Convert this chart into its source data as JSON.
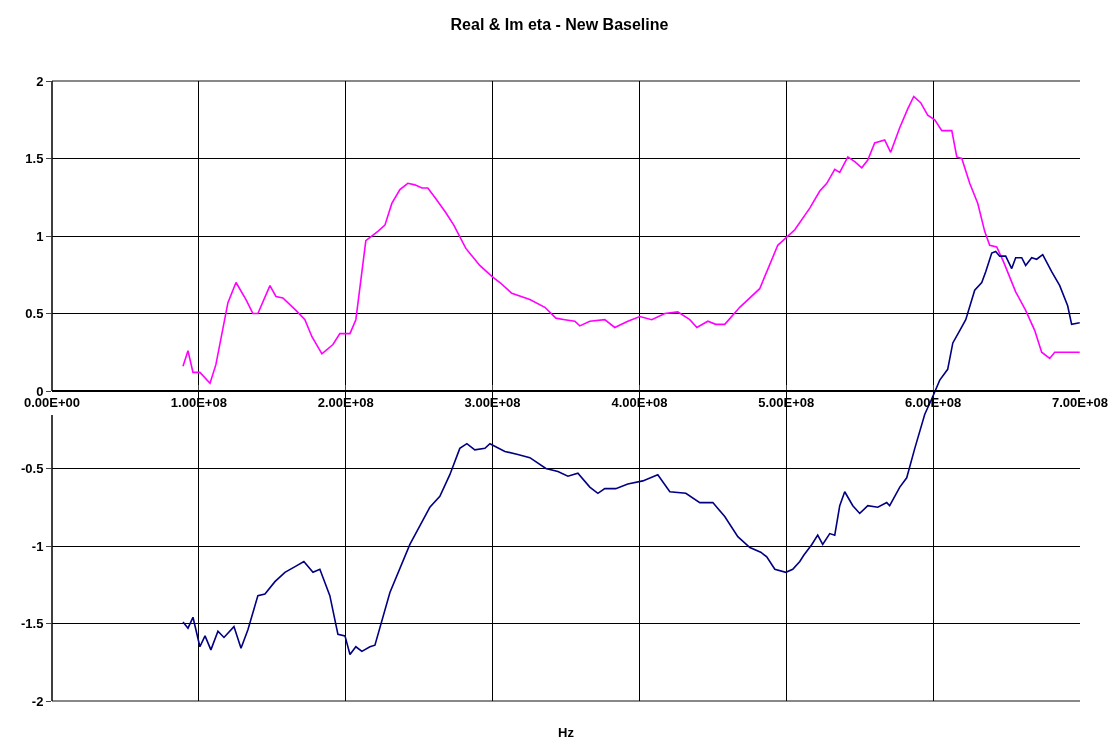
{
  "chart_data": {
    "type": "line",
    "title": "Real & Im eta - New Baseline",
    "xlabel": "Hz",
    "xlim": [
      0,
      700000000
    ],
    "ylim": [
      -2,
      2
    ],
    "xticks": [
      {
        "value": 0,
        "label": "0.00E+00"
      },
      {
        "value": 100000000,
        "label": "1.00E+08"
      },
      {
        "value": 200000000,
        "label": "2.00E+08"
      },
      {
        "value": 300000000,
        "label": "3.00E+08"
      },
      {
        "value": 400000000,
        "label": "4.00E+08"
      },
      {
        "value": 500000000,
        "label": "5.00E+08"
      },
      {
        "value": 600000000,
        "label": "6.00E+08"
      },
      {
        "value": 700000000,
        "label": "7.00E+08"
      }
    ],
    "yticks": [
      -2,
      -1.5,
      -1,
      -0.5,
      0,
      0.5,
      1,
      1.5,
      2
    ],
    "grid": true,
    "marker": "none",
    "line_style": "solid",
    "series": [
      {
        "color": "#ff00ff",
        "x": [
          89200000,
          92600000,
          96000000,
          100700000,
          107600000,
          111600000,
          119800000,
          125300000,
          132100000,
          136800000,
          140200000,
          148400000,
          152500000,
          157200000,
          166100000,
          172200000,
          177000000,
          183800000,
          191300000,
          196000000,
          202900000,
          206900000,
          213700000,
          221900000,
          226700000,
          231400000,
          236900000,
          242300000,
          247100000,
          251900000,
          255900000,
          261400000,
          268200000,
          273600000,
          281800000,
          291300000,
          299500000,
          305000000,
          313100000,
          325400000,
          335600000,
          343100000,
          349200000,
          356000000,
          359400000,
          366200000,
          376400000,
          383200000,
          392100000,
          400300000,
          408400000,
          417300000,
          426100000,
          434300000,
          439100000,
          446600000,
          452000000,
          458100000,
          468300000,
          481900000,
          494200000,
          505800000,
          516000000,
          522800000,
          527600000,
          533000000,
          536400000,
          541900000,
          546600000,
          551400000,
          555500000,
          560200000,
          567000000,
          571100000,
          577300000,
          582700000,
          586800000,
          591500000,
          596300000,
          601100000,
          605900000,
          612700000,
          616100000,
          619500000,
          624900000,
          630400000,
          635100000,
          638500000,
          643300000,
          648100000,
          656200000,
          663000000,
          669200000,
          673900000,
          679400000,
          682800000,
          699800000
        ],
        "values": [
          0.16,
          0.26,
          0.12,
          0.12,
          0.05,
          0.17,
          0.57,
          0.7,
          0.59,
          0.5,
          0.5,
          0.68,
          0.61,
          0.6,
          0.52,
          0.46,
          0.35,
          0.24,
          0.3,
          0.37,
          0.37,
          0.46,
          0.97,
          1.03,
          1.07,
          1.21,
          1.3,
          1.34,
          1.33,
          1.31,
          1.31,
          1.24,
          1.15,
          1.07,
          0.92,
          0.81,
          0.74,
          0.7,
          0.63,
          0.59,
          0.54,
          0.47,
          0.46,
          0.45,
          0.42,
          0.45,
          0.46,
          0.41,
          0.45,
          0.48,
          0.46,
          0.5,
          0.51,
          0.46,
          0.41,
          0.45,
          0.43,
          0.43,
          0.54,
          0.66,
          0.94,
          1.04,
          1.18,
          1.29,
          1.34,
          1.43,
          1.41,
          1.51,
          1.48,
          1.44,
          1.49,
          1.6,
          1.62,
          1.54,
          1.7,
          1.82,
          1.9,
          1.86,
          1.78,
          1.75,
          1.68,
          1.68,
          1.51,
          1.5,
          1.34,
          1.21,
          1.03,
          0.94,
          0.93,
          0.83,
          0.64,
          0.52,
          0.39,
          0.25,
          0.21,
          0.25,
          0.25
        ]
      },
      {
        "color": "#000080",
        "x": [
          89200000,
          92600000,
          96000000,
          100700000,
          104200000,
          108200000,
          113000000,
          117100000,
          123900000,
          128700000,
          133400000,
          140200000,
          145000000,
          151800000,
          158600000,
          166100000,
          171500000,
          177700000,
          182400000,
          189200000,
          194700000,
          199500000,
          202900000,
          206900000,
          211000000,
          216500000,
          219900000,
          230100000,
          243700000,
          257300000,
          264100000,
          270900000,
          277700000,
          282500000,
          287900000,
          294800000,
          298200000,
          308400000,
          317200000,
          325400000,
          336300000,
          344500000,
          351300000,
          358100000,
          366200000,
          371700000,
          376400000,
          383900000,
          392100000,
          402300000,
          412500000,
          420700000,
          431600000,
          441100000,
          450000000,
          458100000,
          467000000,
          475200000,
          482600000,
          486700000,
          492200000,
          499700000,
          504400000,
          509200000,
          511900000,
          517400000,
          521400000,
          524800000,
          529600000,
          533000000,
          536400000,
          539800000,
          545300000,
          550000000,
          555500000,
          562300000,
          568400000,
          570400000,
          577300000,
          582000000,
          587500000,
          594300000,
          599100000,
          604500000,
          609900000,
          613400000,
          618100000,
          622200000,
          628300000,
          633100000,
          635800000,
          639900000,
          642600000,
          645300000,
          649400000,
          653500000,
          656200000,
          660300000,
          663000000,
          667100000,
          670500000,
          674600000,
          680700000,
          686200000,
          691600000,
          694300000,
          699800000
        ],
        "values": [
          -1.49,
          -1.53,
          -1.46,
          -1.65,
          -1.58,
          -1.67,
          -1.55,
          -1.59,
          -1.52,
          -1.66,
          -1.54,
          -1.32,
          -1.31,
          -1.23,
          -1.17,
          -1.13,
          -1.1,
          -1.17,
          -1.15,
          -1.32,
          -1.57,
          -1.58,
          -1.7,
          -1.65,
          -1.68,
          -1.65,
          -1.64,
          -1.3,
          -0.99,
          -0.75,
          -0.68,
          -0.54,
          -0.37,
          -0.34,
          -0.38,
          -0.37,
          -0.34,
          -0.39,
          -0.41,
          -0.43,
          -0.5,
          -0.52,
          -0.55,
          -0.53,
          -0.62,
          -0.66,
          -0.63,
          -0.63,
          -0.6,
          -0.58,
          -0.54,
          -0.65,
          -0.66,
          -0.72,
          -0.72,
          -0.81,
          -0.94,
          -1.01,
          -1.04,
          -1.07,
          -1.15,
          -1.17,
          -1.15,
          -1.1,
          -1.06,
          -0.99,
          -0.93,
          -0.99,
          -0.92,
          -0.93,
          -0.74,
          -0.65,
          -0.74,
          -0.79,
          -0.74,
          -0.75,
          -0.72,
          -0.74,
          -0.62,
          -0.56,
          -0.37,
          -0.15,
          -0.05,
          0.07,
          0.14,
          0.31,
          0.39,
          0.46,
          0.65,
          0.7,
          0.77,
          0.89,
          0.9,
          0.87,
          0.87,
          0.79,
          0.86,
          0.86,
          0.81,
          0.86,
          0.85,
          0.88,
          0.77,
          0.68,
          0.55,
          0.43,
          0.44
        ]
      }
    ]
  }
}
